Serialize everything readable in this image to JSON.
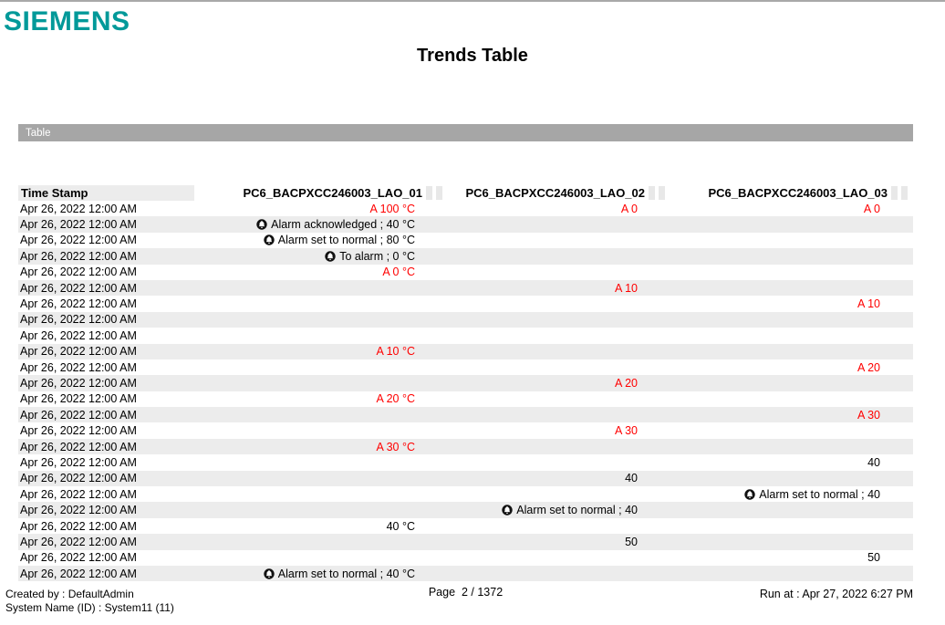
{
  "page": {
    "logo": "SIEMENS",
    "title": "Trends Table",
    "section_label": "Table"
  },
  "table": {
    "timestamp_header": "Time Stamp",
    "columns": [
      "PC6_BACPXCC246003_LAO_01",
      "PC6_BACPXCC246003_LAO_02",
      "PC6_BACPXCC246003_LAO_03"
    ],
    "rows": [
      {
        "ts": "Apr 26, 2022 12:00 AM",
        "c1": {
          "text": "A 100 °C",
          "red": true
        },
        "c2": {
          "text": "A 0",
          "red": true
        },
        "c3": {
          "text": "A 0",
          "red": true
        }
      },
      {
        "ts": "Apr 26, 2022 12:00 AM",
        "c1": {
          "text": "Alarm acknowledged ; 40 °C",
          "bell": true
        }
      },
      {
        "ts": "Apr 26, 2022 12:00 AM",
        "c1": {
          "text": "Alarm set to normal ; 80 °C",
          "bell": true
        }
      },
      {
        "ts": "Apr 26, 2022 12:00 AM",
        "c1": {
          "text": "To alarm ; 0 °C",
          "bell": true
        }
      },
      {
        "ts": "Apr 26, 2022 12:00 AM",
        "c1": {
          "text": "A 0 °C",
          "red": true
        }
      },
      {
        "ts": "Apr 26, 2022 12:00 AM",
        "c2": {
          "text": "A 10",
          "red": true
        }
      },
      {
        "ts": "Apr 26, 2022 12:00 AM",
        "c3": {
          "text": "A 10",
          "red": true
        }
      },
      {
        "ts": "Apr 26, 2022 12:00 AM"
      },
      {
        "ts": "Apr 26, 2022 12:00 AM"
      },
      {
        "ts": "Apr 26, 2022 12:00 AM",
        "c1": {
          "text": "A 10 °C",
          "red": true
        }
      },
      {
        "ts": "Apr 26, 2022 12:00 AM",
        "c3": {
          "text": "A 20",
          "red": true
        }
      },
      {
        "ts": "Apr 26, 2022 12:00 AM",
        "c2": {
          "text": "A 20",
          "red": true
        }
      },
      {
        "ts": "Apr 26, 2022 12:00 AM",
        "c1": {
          "text": "A 20 °C",
          "red": true
        }
      },
      {
        "ts": "Apr 26, 2022 12:00 AM",
        "c3": {
          "text": "A 30",
          "red": true
        }
      },
      {
        "ts": "Apr 26, 2022 12:00 AM",
        "c2": {
          "text": "A 30",
          "red": true
        }
      },
      {
        "ts": "Apr 26, 2022 12:00 AM",
        "c1": {
          "text": "A 30 °C",
          "red": true
        }
      },
      {
        "ts": "Apr 26, 2022 12:00 AM",
        "c3": {
          "text": "40"
        }
      },
      {
        "ts": "Apr 26, 2022 12:00 AM",
        "c2": {
          "text": "40"
        }
      },
      {
        "ts": "Apr 26, 2022 12:00 AM",
        "c3": {
          "text": "Alarm set to normal ; 40",
          "bell": true
        }
      },
      {
        "ts": "Apr 26, 2022 12:00 AM",
        "c2": {
          "text": "Alarm set to normal ; 40",
          "bell": true
        }
      },
      {
        "ts": "Apr 26, 2022 12:00 AM",
        "c1": {
          "text": "40 °C"
        }
      },
      {
        "ts": "Apr 26, 2022 12:00 AM",
        "c2": {
          "text": "50"
        }
      },
      {
        "ts": "Apr 26, 2022 12:00 AM",
        "c3": {
          "text": "50"
        }
      },
      {
        "ts": "Apr 26, 2022 12:00 AM",
        "c1": {
          "text": "Alarm set to normal ; 40 °C",
          "bell": true
        }
      }
    ]
  },
  "footer": {
    "created_by": "Created by : DefaultAdmin",
    "system_name": "System Name (ID) : System11 (11)",
    "page_indicator": "Page  2 / 1372",
    "run_at": "Run at : Apr 27, 2022 6:27 PM"
  },
  "icons": {
    "alarm_bell": "alarm-bell-icon"
  },
  "colors": {
    "brand_teal": "#009999",
    "alarm_red": "#ff0000",
    "section_bar_gray": "#a6a6a6",
    "row_stripe_gray": "#ececec"
  }
}
